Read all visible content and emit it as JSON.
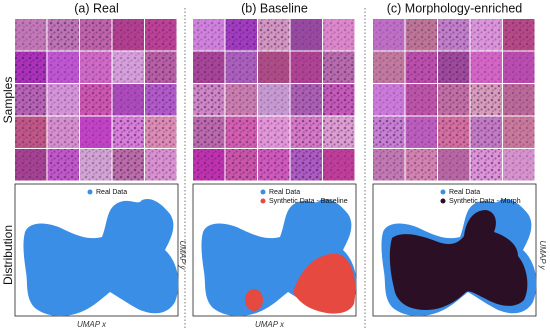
{
  "row_labels": {
    "samples": "Samples",
    "distribution": "Distribution"
  },
  "columns": [
    {
      "title": "(a) Real",
      "legend": [
        {
          "label": "Real Data",
          "color": "#3a8ee6"
        }
      ],
      "x_label": "UMAP x"
    },
    {
      "title": "(b) Baseline",
      "legend": [
        {
          "label": "Real Data",
          "color": "#3a8ee6"
        },
        {
          "label": "Synthetic Data - Baseline",
          "color": "#e5493f"
        }
      ],
      "x_label": "UMAP x",
      "y_label": "UMAP y"
    },
    {
      "title": "(c) Morphology-enriched",
      "legend": [
        {
          "label": "Real Data",
          "color": "#3a8ee6"
        },
        {
          "label": "Synthetic Data - Morph",
          "color": "#2b1025"
        }
      ],
      "y_label": "UMAP y"
    }
  ]
}
